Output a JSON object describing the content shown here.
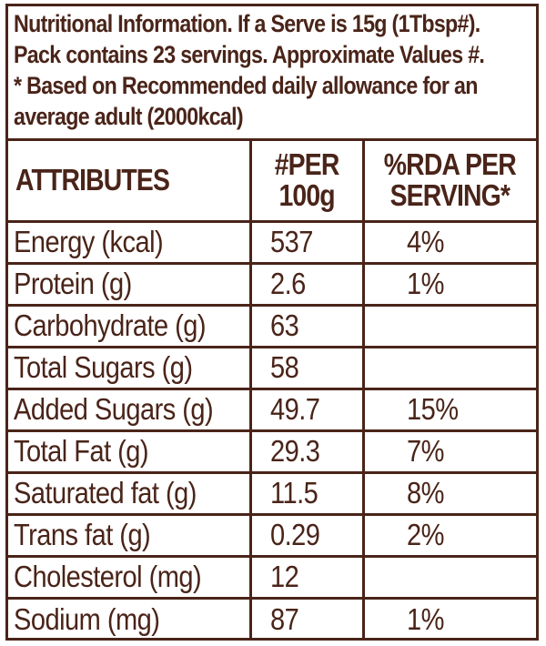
{
  "header": {
    "lines": [
      "Nutritional Information. If a Serve is 15g (1Tbsp#).",
      "Pack contains 23 servings. Approximate Values #.",
      "* Based on Recommended daily allowance for an",
      "average adult (2000kcal)"
    ]
  },
  "table": {
    "columns": {
      "attributes": "ATTRIBUTES",
      "per_100g_line1": "#PER",
      "per_100g_line2": "100g",
      "rda_line1": "%RDA PER",
      "rda_line2": "SERVING*"
    },
    "rows": [
      {
        "name": "Energy (kcal)",
        "per_100g": "537",
        "rda": "4%"
      },
      {
        "name": "Protein (g)",
        "per_100g": "2.6",
        "rda": "1%"
      },
      {
        "name": "Carbohydrate (g)",
        "per_100g": "63",
        "rda": ""
      },
      {
        "name": "Total Sugars (g)",
        "per_100g": "58",
        "rda": ""
      },
      {
        "name": "Added Sugars (g)",
        "per_100g": "49.7",
        "rda": "15%"
      },
      {
        "name": "Total Fat (g)",
        "per_100g": "29.3",
        "rda": "7%"
      },
      {
        "name": "Saturated fat (g)",
        "per_100g": "11.5",
        "rda": "8%"
      },
      {
        "name": "Trans fat (g)",
        "per_100g": "0.29",
        "rda": "2%"
      },
      {
        "name": "Cholesterol (mg)",
        "per_100g": "12",
        "rda": ""
      },
      {
        "name": "Sodium (mg)",
        "per_100g": "87",
        "rda": "1%"
      }
    ]
  },
  "colors": {
    "text": "#4a2419",
    "border": "#4a2419",
    "background": "#ffffff"
  }
}
